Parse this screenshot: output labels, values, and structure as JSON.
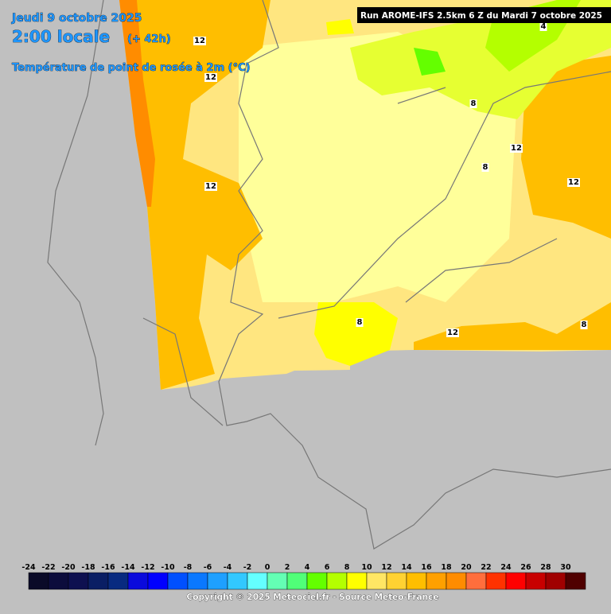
{
  "header": {
    "date": "Jeudi 9 octobre 2025",
    "time": "2:00 locale",
    "lead": "(+ 42h)",
    "parameter": "Température de point de rosée à 2m (°C)",
    "run": "Run AROME-IFS 2.5km 6 Z du Mardi 7 octobre 2025"
  },
  "contour_labels": [
    12,
    12,
    12,
    12,
    12,
    12,
    8,
    8,
    8,
    8,
    4
  ],
  "legend": {
    "ticks": [
      -24,
      -22,
      -20,
      -18,
      -16,
      -14,
      -12,
      -10,
      -8,
      -6,
      -4,
      -2,
      0,
      2,
      4,
      6,
      8,
      10,
      12,
      14,
      16,
      18,
      20,
      22,
      24,
      26,
      28,
      30
    ],
    "colors": [
      "#0a0a28",
      "#0c0c3c",
      "#0e1050",
      "#0a1e64",
      "#082a80",
      "#0a0adc",
      "#0000ff",
      "#0050ff",
      "#0a78ff",
      "#1ea0ff",
      "#32c8ff",
      "#64ffff",
      "#64ffb4",
      "#50ff78",
      "#64ff00",
      "#b4ff00",
      "#ffff00",
      "#ffe664",
      "#ffd232",
      "#ffbe00",
      "#ffa000",
      "#ff8c00",
      "#ff6e3c",
      "#ff3200",
      "#ff0000",
      "#c80000",
      "#a00000",
      "#500000"
    ]
  },
  "footer": {
    "copyright": "Copyright © 2025 Meteociel.fr - Source Meteo-France"
  }
}
